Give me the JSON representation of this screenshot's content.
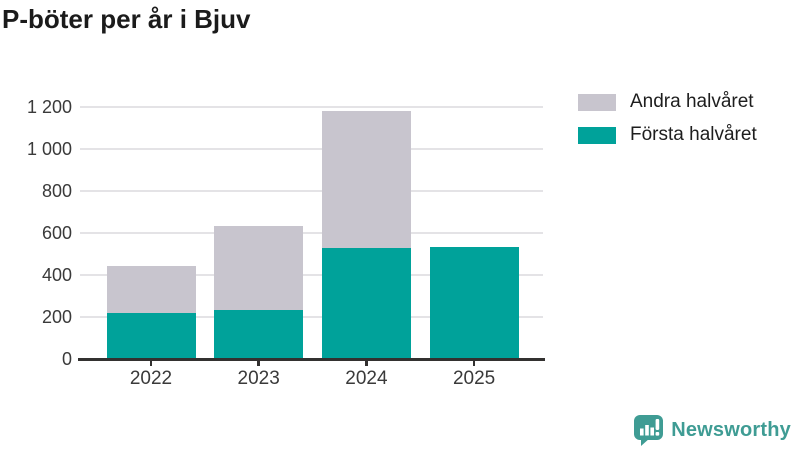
{
  "title": "P-böter per år i Bjuv",
  "legend": [
    {
      "label": "Andra halvåret",
      "color": "#c8c5ce"
    },
    {
      "label": "Första halvåret",
      "color": "#00a29a"
    }
  ],
  "chart_data": {
    "type": "bar",
    "stacked": true,
    "title": "P-böter per år i Bjuv",
    "categories": [
      "2022",
      "2023",
      "2024",
      "2025"
    ],
    "series": [
      {
        "id": "forsta",
        "name": "Första halvåret",
        "color": "#00a29a",
        "values": [
          220,
          233,
          529,
          533
        ]
      },
      {
        "id": "andra",
        "name": "Andra halvåret",
        "color": "#c8c5ce",
        "values": [
          223,
          400,
          650,
          0
        ]
      }
    ],
    "totals": [
      443,
      633,
      1179,
      533
    ],
    "xlabel": "",
    "ylabel": "",
    "ylim": [
      0,
      1200
    ],
    "yticks": [
      0,
      200,
      400,
      600,
      800,
      1000,
      1200
    ],
    "ytick_labels": [
      "0",
      "200",
      "400",
      "600",
      "800",
      "1 000",
      "1 200"
    ],
    "grid": true,
    "legend_position": "top-right"
  },
  "branding": {
    "logo_text": "Newsworthy",
    "logo_color": "#3f9c94",
    "logo_icon": "bar-chart-speech-bubble-icon"
  }
}
